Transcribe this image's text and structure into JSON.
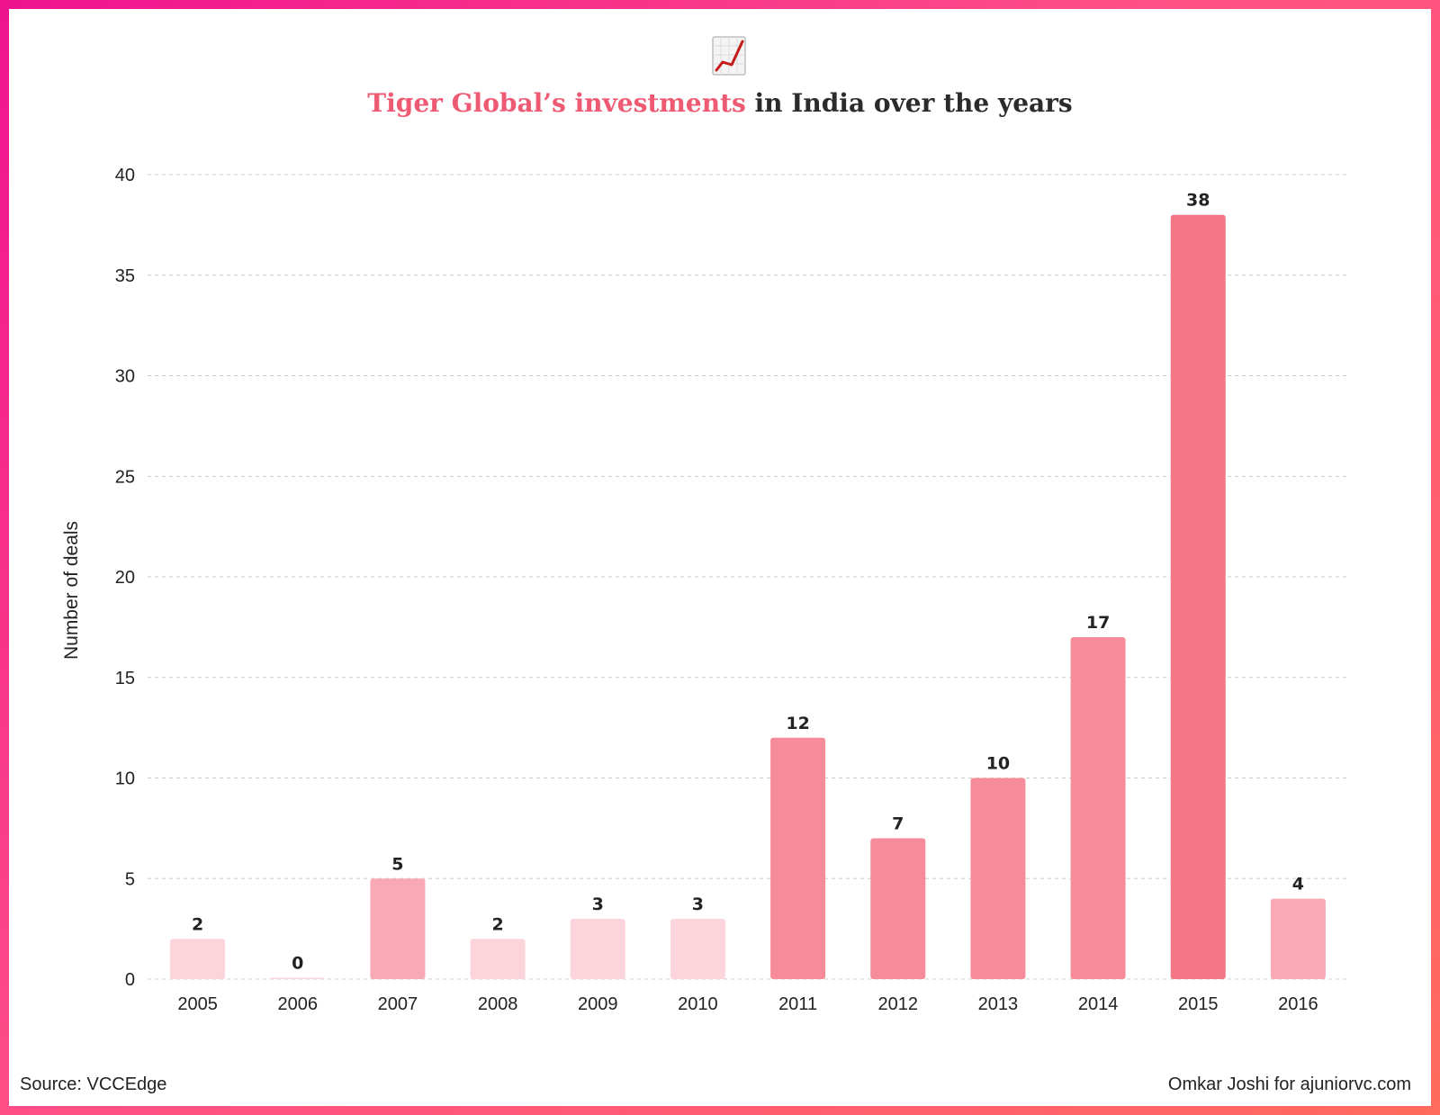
{
  "title": {
    "accent": "Tiger Global’s investments",
    "rest": " in India over the years"
  },
  "emoji": {
    "icon": "chart-increasing-icon"
  },
  "footer": {
    "source": "Source: VCCEdge",
    "credit": "Omkar Joshi for ajuniorvc.com"
  },
  "colors": {
    "accent": "#ee5a72",
    "bar_light": "#fcd4db",
    "bar_mid": "#f8a9b4",
    "bar_strong": "#f68c99",
    "bar_peak": "#f37786",
    "grid": "#cccccc"
  },
  "chart_data": {
    "type": "bar",
    "title": "Tiger Global’s investments in India over the years",
    "xlabel": "",
    "ylabel": "Number of deals",
    "categories": [
      "2005",
      "2006",
      "2007",
      "2008",
      "2009",
      "2010",
      "2011",
      "2012",
      "2013",
      "2014",
      "2015",
      "2016"
    ],
    "values": [
      2,
      0,
      5,
      2,
      3,
      3,
      12,
      7,
      10,
      17,
      38,
      4
    ],
    "ylim": [
      0,
      40
    ],
    "yticks": [
      0,
      5,
      10,
      15,
      20,
      25,
      30,
      35,
      40
    ],
    "grid": true,
    "data_labels": true
  }
}
